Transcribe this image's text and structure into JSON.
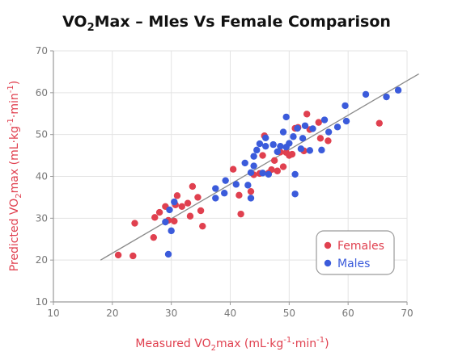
{
  "colors": {
    "females": "#e0404f",
    "males": "#3b5bdb",
    "grid": "#e3e3e3",
    "axis": "#9a9a9a",
    "trend": "#8a8a8a",
    "label": "#e0404f"
  },
  "chart_data": {
    "type": "scatter",
    "title": "VO2Max – Mles Vs Female Comparison",
    "title_parts": {
      "pre": "VO",
      "sub": "2",
      "post": "Max – Mles Vs Female Comparison"
    },
    "xlabel": "Measured VO2max (mL·kg-1·min-1)",
    "xlabel_parts": {
      "a": "Measured VO",
      "b": "2",
      "c": "max (mL·kg",
      "d": "-1",
      "e": "·min",
      "f": "-1",
      "g": ")"
    },
    "ylabel": "Predicted VO2max (mL·kg-1·min-1)",
    "ylabel_parts": {
      "a": "Predicted VO",
      "b": "2",
      "c": "max (mL·kg",
      "d": "-1",
      "e": "·min",
      "f": "-1",
      "g": ")"
    },
    "xlim": [
      10,
      70
    ],
    "ylim": [
      10,
      70
    ],
    "xticks": [
      10,
      20,
      30,
      40,
      50,
      60,
      70
    ],
    "yticks": [
      10,
      20,
      30,
      40,
      50,
      60,
      70
    ],
    "grid": true,
    "legend_position": "bottom-right",
    "trendline": {
      "x": [
        18,
        72
      ],
      "y": [
        20,
        64.5
      ]
    },
    "series": [
      {
        "name": "Females",
        "color": "#e0404f",
        "points": [
          [
            21,
            21.2
          ],
          [
            23.5,
            21
          ],
          [
            23.8,
            28.8
          ],
          [
            27,
            25.4
          ],
          [
            27.2,
            30.2
          ],
          [
            28,
            31.4
          ],
          [
            29,
            32.8
          ],
          [
            29.5,
            29.5
          ],
          [
            30.5,
            29.3
          ],
          [
            30.7,
            33.2
          ],
          [
            31,
            35.4
          ],
          [
            31.8,
            32.8
          ],
          [
            32.8,
            33.6
          ],
          [
            33.2,
            30.5
          ],
          [
            33.6,
            37.6
          ],
          [
            34.5,
            35
          ],
          [
            35,
            31.8
          ],
          [
            35.3,
            28.1
          ],
          [
            40.5,
            41.7
          ],
          [
            41.5,
            35.5
          ],
          [
            41.8,
            31
          ],
          [
            43.5,
            36.4
          ],
          [
            44,
            40.4
          ],
          [
            45,
            40.7
          ],
          [
            45.5,
            45
          ],
          [
            45.8,
            49.7
          ],
          [
            46.5,
            40.8
          ],
          [
            47,
            41.6
          ],
          [
            47.5,
            43.8
          ],
          [
            48,
            41.3
          ],
          [
            48.5,
            45.8
          ],
          [
            49,
            42.3
          ],
          [
            49.5,
            45.7
          ],
          [
            50,
            45
          ],
          [
            50.5,
            45.3
          ],
          [
            51,
            51.5
          ],
          [
            51.5,
            51.7
          ],
          [
            52.5,
            46.1
          ],
          [
            53,
            54.9
          ],
          [
            53.5,
            51.2
          ],
          [
            55,
            52.9
          ],
          [
            55.3,
            49.1
          ],
          [
            56.6,
            48.5
          ],
          [
            65.3,
            52.7
          ]
        ]
      },
      {
        "name": "Males",
        "color": "#3b5bdb",
        "points": [
          [
            29,
            29.1
          ],
          [
            29.5,
            21.4
          ],
          [
            29.7,
            32
          ],
          [
            30,
            27
          ],
          [
            30.5,
            33.9
          ],
          [
            37.5,
            34.8
          ],
          [
            37.5,
            37.1
          ],
          [
            39,
            36
          ],
          [
            39.2,
            39
          ],
          [
            41,
            38.1
          ],
          [
            42.5,
            43.2
          ],
          [
            43,
            37.9
          ],
          [
            43.5,
            34.8
          ],
          [
            43.5,
            40.9
          ],
          [
            44,
            44.8
          ],
          [
            44,
            42.5
          ],
          [
            44.5,
            46.3
          ],
          [
            45,
            47.8
          ],
          [
            45.5,
            40.8
          ],
          [
            46,
            47.2
          ],
          [
            46,
            49.2
          ],
          [
            46.5,
            40.5
          ],
          [
            47.3,
            47.6
          ],
          [
            48,
            45.9
          ],
          [
            48.5,
            47.2
          ],
          [
            49,
            50.6
          ],
          [
            49.5,
            54.2
          ],
          [
            49.5,
            47
          ],
          [
            50,
            47.9
          ],
          [
            50.7,
            49.5
          ],
          [
            51,
            40.5
          ],
          [
            51,
            35.8
          ],
          [
            51.4,
            51.5
          ],
          [
            52,
            46.6
          ],
          [
            52.3,
            49.1
          ],
          [
            52.7,
            52.1
          ],
          [
            53.5,
            46.2
          ],
          [
            54,
            51.4
          ],
          [
            55.5,
            46.3
          ],
          [
            56,
            53.5
          ],
          [
            56.7,
            50.6
          ],
          [
            58.2,
            51.8
          ],
          [
            59.5,
            56.9
          ],
          [
            59.7,
            53.2
          ],
          [
            63,
            59.6
          ],
          [
            66.5,
            59
          ],
          [
            68.5,
            60.6
          ]
        ]
      }
    ]
  }
}
